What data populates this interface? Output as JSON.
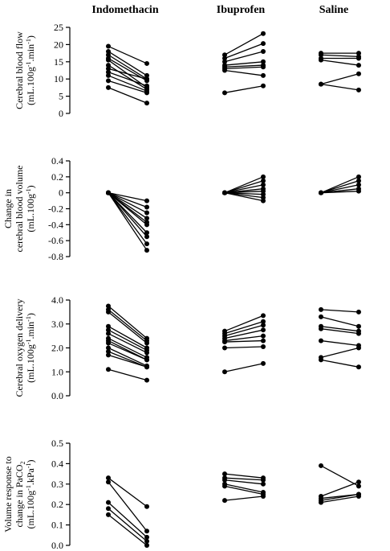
{
  "chart_data": {
    "type": "line",
    "groups": [
      "Indomethacin",
      "Ibuprofen",
      "Saline"
    ],
    "panels": [
      {
        "ylabel_lines": [
          {
            "text": "Cerebral blood flow"
          },
          {
            "text": "(mL.100g",
            "sup": "-1",
            "mid": ".min",
            "sup2": "-1",
            "end": ")"
          }
        ],
        "ylim": [
          0,
          25
        ],
        "ticks": [
          0,
          5,
          10,
          15,
          20,
          25
        ],
        "tick_labels": [
          "0",
          "5",
          "10",
          "15",
          "20",
          "25"
        ],
        "data": {
          "Indomethacin": [
            [
              19.5,
              14.5
            ],
            [
              18,
              11
            ],
            [
              17,
              10
            ],
            [
              16,
              9.5
            ],
            [
              15.5,
              7.5
            ],
            [
              14,
              7
            ],
            [
              13,
              10
            ],
            [
              12,
              8
            ],
            [
              11,
              6.5
            ],
            [
              9.5,
              6
            ],
            [
              7.5,
              3
            ]
          ],
          "Ibuprofen": [
            [
              17,
              23.2
            ],
            [
              16,
              20.3
            ],
            [
              15,
              18
            ],
            [
              14,
              15
            ],
            [
              13.5,
              14
            ],
            [
              13,
              13.5
            ],
            [
              12.5,
              11
            ],
            [
              6,
              8
            ]
          ],
          "Saline": [
            [
              17.5,
              17.5
            ],
            [
              17,
              16.5
            ],
            [
              16,
              16
            ],
            [
              15.5,
              14
            ],
            [
              8.5,
              11.5
            ],
            [
              8.5,
              6.8
            ]
          ]
        }
      },
      {
        "ylabel_lines": [
          {
            "text": "Change in"
          },
          {
            "text": "cerebral blood volume"
          },
          {
            "text": "(mL.100g",
            "sup": "-1",
            "end": ")"
          }
        ],
        "ylim": [
          -0.8,
          0.4
        ],
        "ticks": [
          0.4,
          0.2,
          0,
          -0.2,
          -0.4,
          -0.6,
          -0.8
        ],
        "tick_labels": [
          "0.4",
          "0.2",
          "0",
          "-0.2",
          "-0.4",
          "-0.6",
          "-0.8"
        ],
        "data": {
          "Indomethacin": [
            [
              0,
              -0.1
            ],
            [
              0,
              -0.18
            ],
            [
              0,
              -0.25
            ],
            [
              0,
              -0.32
            ],
            [
              0,
              -0.37
            ],
            [
              0,
              -0.4
            ],
            [
              0,
              -0.5
            ],
            [
              0,
              -0.55
            ],
            [
              0,
              -0.64
            ],
            [
              0,
              -0.72
            ]
          ],
          "Ibuprofen": [
            [
              0,
              0.2
            ],
            [
              0,
              0.15
            ],
            [
              0,
              0.1
            ],
            [
              0,
              0.05
            ],
            [
              0,
              0.02
            ],
            [
              0,
              -0.02
            ],
            [
              0,
              -0.06
            ],
            [
              0,
              -0.1
            ]
          ],
          "Saline": [
            [
              0,
              0.2
            ],
            [
              0,
              0.15
            ],
            [
              0,
              0.1
            ],
            [
              0,
              0.05
            ],
            [
              0,
              0.02
            ]
          ]
        }
      },
      {
        "ylabel_lines": [
          {
            "text": "Cerebral oxygen delivery"
          },
          {
            "text": "(mL.100g",
            "sup": "-1",
            "mid": ".min",
            "sup2": "-1",
            "end": ")"
          }
        ],
        "ylim": [
          0,
          4
        ],
        "ticks": [
          0,
          1,
          2,
          3,
          4
        ],
        "tick_labels": [
          "0.0",
          "1.0",
          "2.0",
          "3.0",
          "4.0"
        ],
        "data": {
          "Indomethacin": [
            [
              3.75,
              2.4
            ],
            [
              3.6,
              2.3
            ],
            [
              3.5,
              2.2
            ],
            [
              2.9,
              2.0
            ],
            [
              2.75,
              1.9
            ],
            [
              2.6,
              1.8
            ],
            [
              2.4,
              1.6
            ],
            [
              2.3,
              1.5
            ],
            [
              2.2,
              1.5
            ],
            [
              2.0,
              1.25
            ],
            [
              1.85,
              1.2
            ],
            [
              1.7,
              1.2
            ],
            [
              1.1,
              0.65
            ]
          ],
          "Ibuprofen": [
            [
              2.7,
              3.35
            ],
            [
              2.6,
              3.1
            ],
            [
              2.5,
              2.95
            ],
            [
              2.4,
              2.75
            ],
            [
              2.3,
              2.5
            ],
            [
              2.25,
              2.3
            ],
            [
              2.0,
              2.05
            ],
            [
              1.0,
              1.35
            ]
          ],
          "Saline": [
            [
              3.6,
              3.5
            ],
            [
              3.3,
              2.9
            ],
            [
              2.9,
              2.7
            ],
            [
              2.8,
              2.6
            ],
            [
              2.3,
              2.1
            ],
            [
              1.6,
              2.0
            ],
            [
              1.5,
              1.2
            ]
          ]
        }
      },
      {
        "ylabel_lines": [
          {
            "text": "Volume response to"
          },
          {
            "text": "change in PaCO",
            "sub": "2"
          },
          {
            "text": "(mL.100g",
            "sup": "-1",
            "mid": ".kPa",
            "sup2": "-1",
            "end": ")"
          }
        ],
        "ylim": [
          0,
          0.5
        ],
        "ticks": [
          0,
          0.1,
          0.2,
          0.3,
          0.4,
          0.5
        ],
        "tick_labels": [
          "0.0",
          "0.1",
          "0.2",
          "0.3",
          "0.4",
          "0.5"
        ],
        "data": {
          "Indomethacin": [
            [
              0.33,
              0.19
            ],
            [
              0.31,
              0.07
            ],
            [
              0.21,
              0.04
            ],
            [
              0.18,
              0.02
            ],
            [
              0.15,
              0.0
            ]
          ],
          "Ibuprofen": [
            [
              0.35,
              0.33
            ],
            [
              0.33,
              0.32
            ],
            [
              0.32,
              0.3
            ],
            [
              0.3,
              0.26
            ],
            [
              0.29,
              0.25
            ],
            [
              0.22,
              0.24
            ]
          ],
          "Saline": [
            [
              0.39,
              0.29
            ],
            [
              0.24,
              0.31
            ],
            [
              0.23,
              0.25
            ],
            [
              0.22,
              0.25
            ],
            [
              0.21,
              0.24
            ]
          ]
        }
      }
    ]
  }
}
